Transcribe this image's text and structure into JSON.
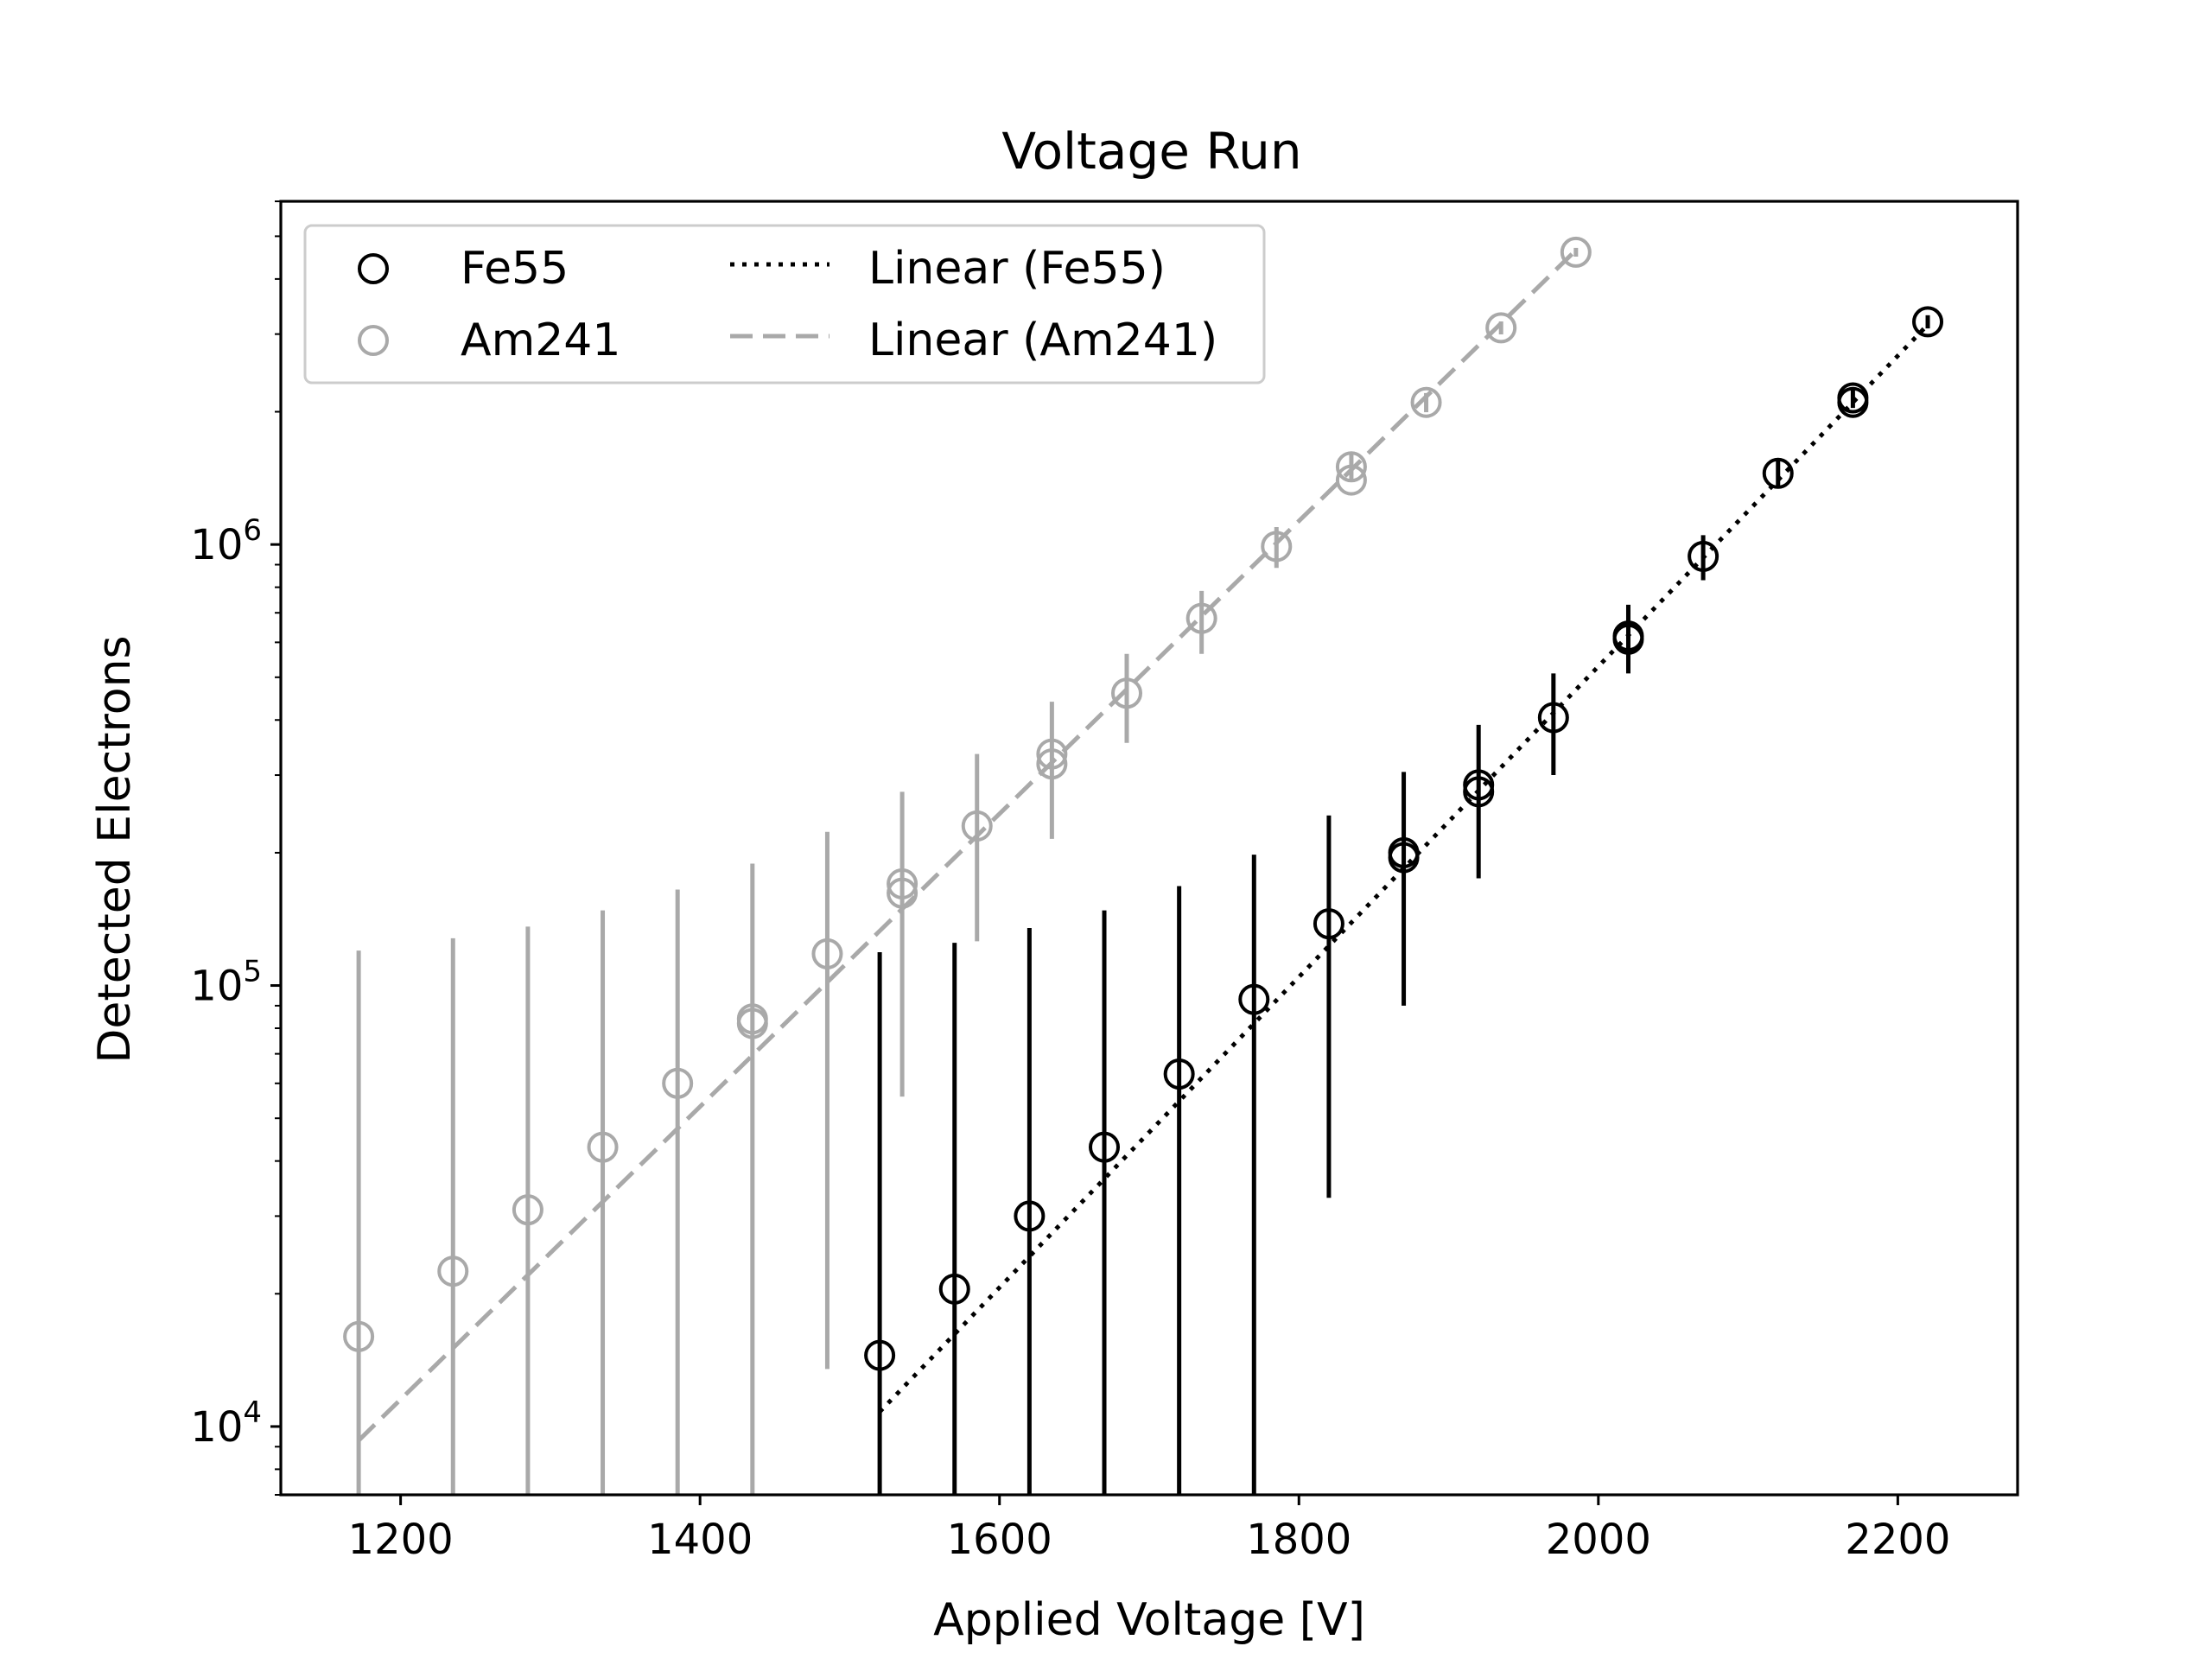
{
  "chart_data": {
    "type": "scatter",
    "title": "Voltage Run",
    "xlabel": "Applied Voltage [V]",
    "ylabel": "Detected Electrons",
    "xlim": [
      1120,
      2280
    ],
    "ylim": [
      7000,
      6000000
    ],
    "yscale": "log",
    "xticks": [
      1200,
      1400,
      1600,
      1800,
      2000,
      2200
    ],
    "xtick_labels": [
      "1200",
      "1400",
      "1600",
      "1800",
      "2000",
      "2200"
    ],
    "yticks": [
      10000,
      100000,
      1000000
    ],
    "ytick_labels": [
      {
        "base": "10",
        "exp": "4"
      },
      {
        "base": "10",
        "exp": "5"
      },
      {
        "base": "10",
        "exp": "6"
      }
    ],
    "grid": false,
    "legend": {
      "position": "upper-left",
      "entries": [
        {
          "label": "Fe55",
          "series": "fe55"
        },
        {
          "label": "Am241",
          "series": "am241"
        },
        {
          "label": "Linear (Fe55)",
          "series": "fe55_fit"
        },
        {
          "label": "Linear (Am241)",
          "series": "am241_fit"
        }
      ]
    },
    "series": [
      {
        "id": "fe55",
        "name": "Fe55",
        "kind": "points",
        "color": "#000000",
        "points": [
          {
            "x": 1520,
            "y": 14500,
            "err_low": 7000,
            "err_high": 119000
          },
          {
            "x": 1570,
            "y": 20500,
            "err_low": 7000,
            "err_high": 125000
          },
          {
            "x": 1620,
            "y": 30000,
            "err_low": 7000,
            "err_high": 135000
          },
          {
            "x": 1670,
            "y": 43000,
            "err_low": 7000,
            "err_high": 148000
          },
          {
            "x": 1720,
            "y": 63000,
            "err_low": 7000,
            "err_high": 168000
          },
          {
            "x": 1770,
            "y": 93000,
            "err_low": 7000,
            "err_high": 198000
          },
          {
            "x": 1820,
            "y": 138000,
            "err_low": 33000,
            "err_high": 243000
          },
          {
            "x": 1870,
            "y": 200000,
            "err_low": 90000,
            "err_high": 305000
          },
          {
            "x": 1870,
            "y": 195000
          },
          {
            "x": 1920,
            "y": 285000,
            "err_low": 175000,
            "err_high": 390000
          },
          {
            "x": 1920,
            "y": 275000
          },
          {
            "x": 1970,
            "y": 405000,
            "err_low": 300000,
            "err_high": 510000
          },
          {
            "x": 2020,
            "y": 620000,
            "err_low": 510000,
            "err_high": 730000
          },
          {
            "x": 2020,
            "y": 610000
          },
          {
            "x": 2070,
            "y": 940000,
            "err_low": 830000,
            "err_high": 1050000
          },
          {
            "x": 2120,
            "y": 1450000,
            "err_low": 1340000,
            "err_high": 1560000
          },
          {
            "x": 2170,
            "y": 2150000,
            "err_low": 2040000,
            "err_high": 2260000
          },
          {
            "x": 2170,
            "y": 2100000
          },
          {
            "x": 2220,
            "y": 3200000,
            "err_low": 3090000,
            "err_high": 3310000
          }
        ]
      },
      {
        "id": "am241",
        "name": "Am241",
        "kind": "points",
        "color": "#a9a9a9",
        "points": [
          {
            "x": 1172,
            "y": 16000,
            "err_low": 7000,
            "err_high": 120000
          },
          {
            "x": 1235,
            "y": 22500,
            "err_low": 7000,
            "err_high": 128000
          },
          {
            "x": 1285,
            "y": 31000,
            "err_low": 7000,
            "err_high": 136000
          },
          {
            "x": 1335,
            "y": 43000,
            "err_low": 7000,
            "err_high": 148000
          },
          {
            "x": 1385,
            "y": 60000,
            "err_low": 7000,
            "err_high": 165000
          },
          {
            "x": 1435,
            "y": 84000,
            "err_low": 7000,
            "err_high": 189000
          },
          {
            "x": 1435,
            "y": 82000
          },
          {
            "x": 1485,
            "y": 118000,
            "err_low": 13500,
            "err_high": 223000
          },
          {
            "x": 1535,
            "y": 170000,
            "err_low": 56000,
            "err_high": 275000
          },
          {
            "x": 1535,
            "y": 162000
          },
          {
            "x": 1585,
            "y": 230000,
            "err_low": 126000,
            "err_high": 335000
          },
          {
            "x": 1635,
            "y": 335000,
            "err_low": 215000,
            "err_high": 440000
          },
          {
            "x": 1635,
            "y": 318000
          },
          {
            "x": 1685,
            "y": 460000,
            "err_low": 355000,
            "err_high": 565000
          },
          {
            "x": 1735,
            "y": 680000,
            "err_low": 565000,
            "err_high": 785000
          },
          {
            "x": 1785,
            "y": 990000,
            "err_low": 885000,
            "err_high": 1095000
          },
          {
            "x": 1835,
            "y": 1500000,
            "err_low": 1395000,
            "err_high": 1605000
          },
          {
            "x": 1835,
            "y": 1400000
          },
          {
            "x": 1885,
            "y": 2100000,
            "err_low": 1995000,
            "err_high": 2205000
          },
          {
            "x": 1935,
            "y": 3100000,
            "err_low": 2995000,
            "err_high": 3205000
          },
          {
            "x": 1985,
            "y": 4600000,
            "err_low": 4495000,
            "err_high": 4705000
          }
        ]
      },
      {
        "id": "fe55_fit",
        "name": "Linear (Fe55)",
        "kind": "line",
        "style": "dotted",
        "color": "#000000",
        "x": [
          1520,
          2220
        ],
        "y": [
          10800,
          3150000
        ]
      },
      {
        "id": "am241_fit",
        "name": "Linear (Am241)",
        "kind": "line",
        "style": "dashed",
        "color": "#a9a9a9",
        "x": [
          1172,
          1985
        ],
        "y": [
          9300,
          4650000
        ]
      }
    ]
  }
}
